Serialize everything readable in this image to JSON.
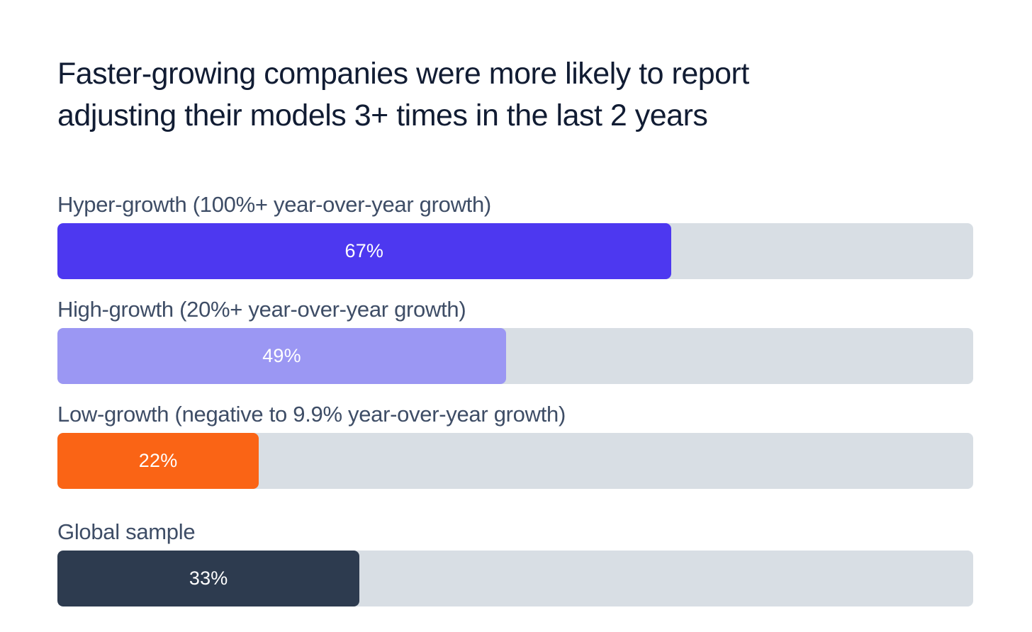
{
  "chart_data": {
    "type": "bar",
    "orientation": "horizontal",
    "title": "Faster-growing companies were more likely to report adjusting their models 3+ times in the last 2 years",
    "categories": [
      "Hyper-growth (100%+ year-over-year growth)",
      "High-growth (20%+ year-over-year growth)",
      "Low-growth (negative to 9.9% year-over-year growth)",
      "Global sample"
    ],
    "values": [
      67,
      49,
      22,
      33
    ],
    "unit": "percent",
    "xlim": [
      0,
      100
    ],
    "grid": false,
    "legend": null,
    "track_color": "#D8DEE4",
    "title_color": "#111C33",
    "label_color": "#3E4D66",
    "value_text_color": "#FFFFFF",
    "bars": [
      {
        "label": "Hyper-growth (100%+ year-over-year growth)",
        "value": 67,
        "value_label": "67%",
        "color": "#4D38F0"
      },
      {
        "label": "High-growth (20%+ year-over-year growth)",
        "value": 49,
        "value_label": "49%",
        "color": "#9B97F3"
      },
      {
        "label": "Low-growth (negative to 9.9% year-over-year growth)",
        "value": 22,
        "value_label": "22%",
        "color": "#FA6415"
      },
      {
        "label": "Global sample",
        "value": 33,
        "value_label": "33%",
        "color": "#2D3B4F"
      }
    ]
  }
}
